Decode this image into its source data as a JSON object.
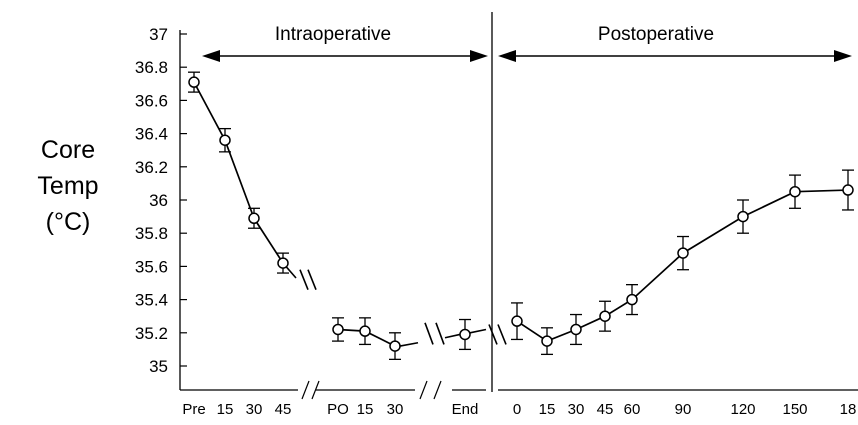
{
  "chart_data": {
    "type": "line",
    "title": "",
    "xlabel": "",
    "ylabel": [
      "Core",
      "Temp",
      "(°C)"
    ],
    "ylim": [
      35,
      37
    ],
    "yticks": [
      "35",
      "35.2",
      "35.4",
      "35.6",
      "35.8",
      "36",
      "36.2",
      "36.4",
      "36.6",
      "36.8",
      "37"
    ],
    "grid": false,
    "phases": [
      {
        "label": "Intraoperative"
      },
      {
        "label": "Postoperative"
      }
    ],
    "segments": [
      {
        "name": "",
        "points": [
          {
            "x": "Pre",
            "y": 36.71,
            "err": 0.06
          },
          {
            "x": "15",
            "y": 36.36,
            "err": 0.07
          },
          {
            "x": "30",
            "y": 35.89,
            "err": 0.06
          },
          {
            "x": "45",
            "y": 35.62,
            "err": 0.06
          }
        ]
      },
      {
        "name": "",
        "points": [
          {
            "x": "PO",
            "y": 35.22,
            "err": 0.07
          },
          {
            "x": "15",
            "y": 35.21,
            "err": 0.08
          },
          {
            "x": "30",
            "y": 35.12,
            "err": 0.08
          }
        ]
      },
      {
        "name": "",
        "points": [
          {
            "x": "End",
            "y": 35.19,
            "err": 0.09
          }
        ]
      },
      {
        "name": "",
        "points": [
          {
            "x": "0",
            "y": 35.27,
            "err": 0.11
          },
          {
            "x": "15",
            "y": 35.15,
            "err": 0.08
          },
          {
            "x": "30",
            "y": 35.22,
            "err": 0.09
          },
          {
            "x": "45",
            "y": 35.3,
            "err": 0.09
          },
          {
            "x": "60",
            "y": 35.4,
            "err": 0.09
          },
          {
            "x": "90",
            "y": 35.68,
            "err": 0.1
          },
          {
            "x": "120",
            "y": 35.9,
            "err": 0.1
          },
          {
            "x": "150",
            "y": 36.05,
            "err": 0.1
          },
          {
            "x": "18",
            "y": 36.06,
            "err": 0.12
          }
        ]
      }
    ]
  },
  "colors": {
    "line": "#000000",
    "marker_fill": "#ffffff"
  }
}
